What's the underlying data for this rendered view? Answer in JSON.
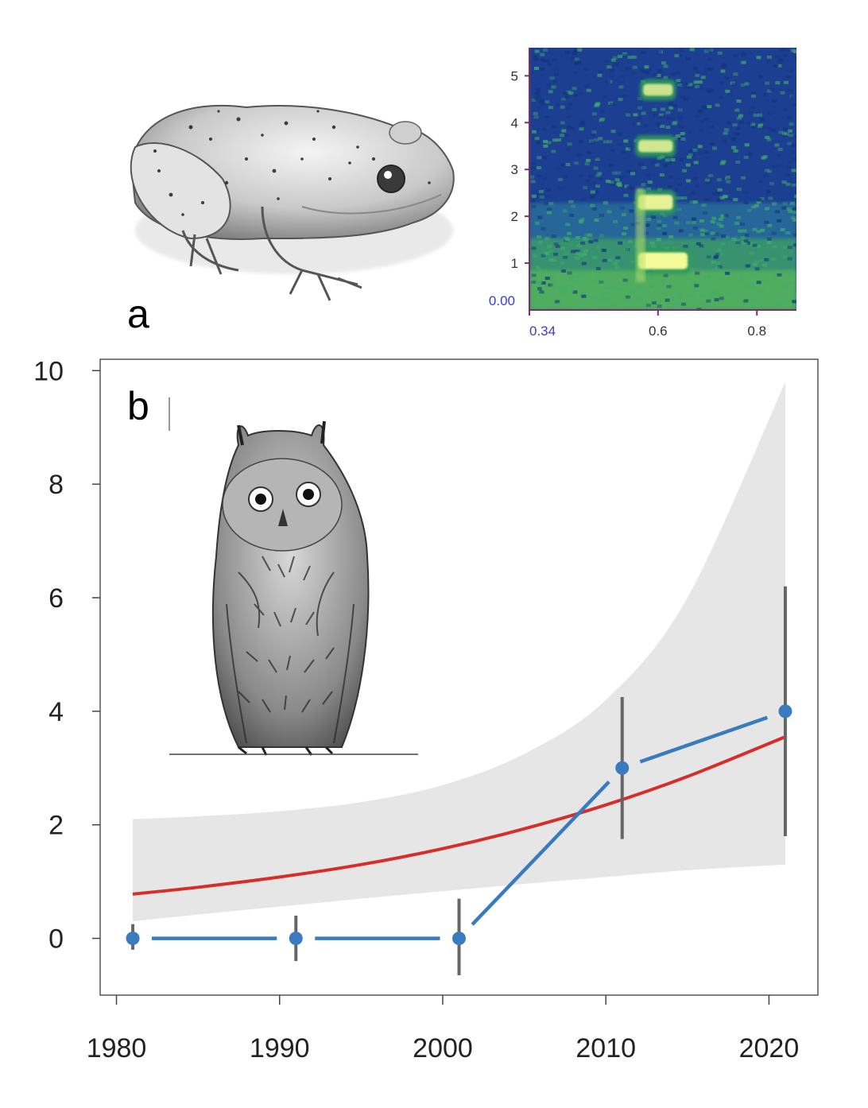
{
  "panels": {
    "a": {
      "letter": "a"
    },
    "b": {
      "letter": "b"
    }
  },
  "illustrations": {
    "frog": {
      "icon": "frog-drawing-icon"
    },
    "owl": {
      "icon": "owl-drawing-icon"
    }
  },
  "chart_data": [
    {
      "type": "heatmap",
      "panel": "a",
      "description_kind": "spectrogram",
      "title": "",
      "xlabel": "",
      "ylabel": "",
      "xlim": [
        0.34,
        0.88
      ],
      "ylim": [
        0.0,
        5.6
      ],
      "x_ticks": [
        0.6,
        0.8
      ],
      "x_origin_label": "0.34",
      "y_ticks": [
        1,
        2,
        3,
        4,
        5
      ],
      "y_origin_label": "0.00",
      "harmonics": [
        {
          "x_start": 0.56,
          "x_end": 0.66,
          "y": 1.05,
          "intensity": 1.0
        },
        {
          "x_start": 0.56,
          "x_end": 0.63,
          "y": 2.3,
          "intensity": 0.85
        },
        {
          "x_start": 0.56,
          "x_end": 0.63,
          "y": 3.5,
          "intensity": 0.6
        },
        {
          "x_start": 0.57,
          "x_end": 0.63,
          "y": 4.7,
          "intensity": 0.55
        }
      ],
      "colors": {
        "background": "#1b3f8f",
        "mid": "#2f9a5a",
        "high": "#f4f99a"
      }
    },
    {
      "type": "line",
      "panel": "b",
      "title": "",
      "xlabel": "",
      "ylabel": "",
      "xlim": [
        1979,
        2023
      ],
      "ylim": [
        -1,
        10.2
      ],
      "x_ticks": [
        1980,
        1990,
        2000,
        2010,
        2020
      ],
      "y_ticks": [
        0,
        2,
        4,
        6,
        8,
        10
      ],
      "grid": false,
      "series": [
        {
          "kind": "observed-points",
          "color": "#3a7bbf",
          "x": [
            1981,
            1991,
            2001,
            2011,
            2021
          ],
          "y": [
            0,
            0,
            0,
            3.0,
            4.0
          ],
          "error_low": [
            -0.2,
            -0.4,
            -0.65,
            1.75,
            1.8
          ],
          "error_high": [
            0.25,
            0.4,
            0.7,
            4.25,
            6.2
          ]
        },
        {
          "kind": "fitted-trend",
          "color": "#d62f2a",
          "x": [
            1981,
            1985,
            1990,
            1995,
            2000,
            2005,
            2010,
            2015,
            2021
          ],
          "y": [
            0.78,
            0.9,
            1.08,
            1.3,
            1.58,
            1.93,
            2.35,
            2.85,
            3.55
          ]
        },
        {
          "kind": "confidence-band",
          "color": "#e6e6e6",
          "x": [
            1981,
            1985,
            1990,
            1995,
            2000,
            2005,
            2010,
            2015,
            2021
          ],
          "lower": [
            0.3,
            0.42,
            0.56,
            0.7,
            0.83,
            0.96,
            1.08,
            1.2,
            1.3
          ],
          "upper": [
            2.1,
            2.15,
            2.24,
            2.4,
            2.7,
            3.25,
            4.2,
            6.0,
            9.8
          ]
        }
      ]
    }
  ]
}
